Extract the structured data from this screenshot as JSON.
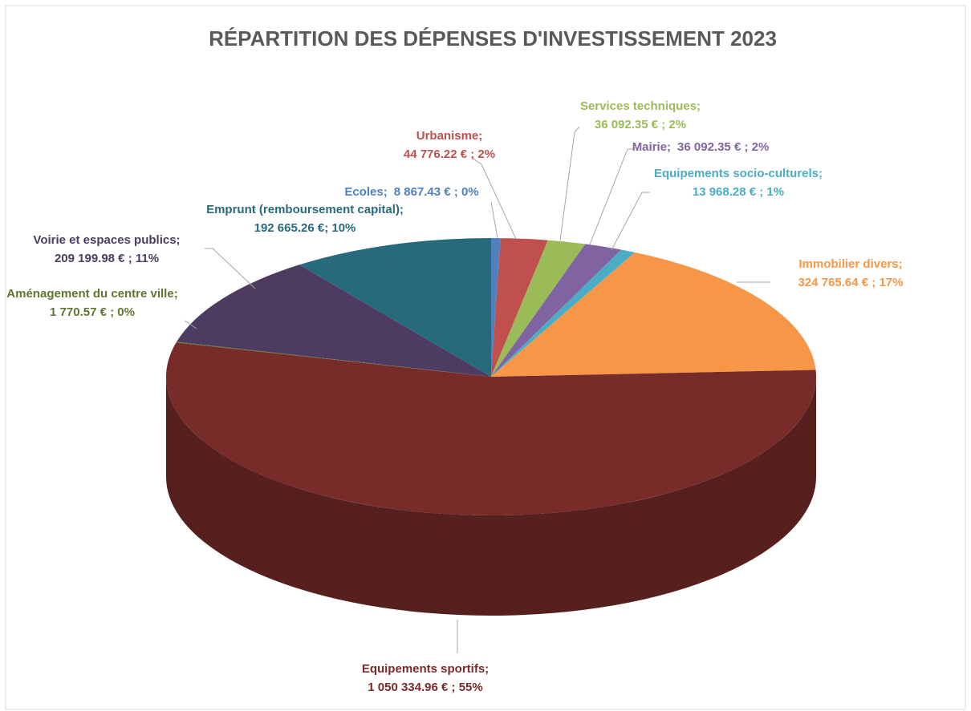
{
  "chart_data": {
    "type": "pie",
    "title": "RÉPARTITION DES DÉPENSES D'INVESTISSEMENT 2023",
    "categories": [
      "Ecoles;",
      "Urbanisme;",
      "Services techniques;",
      "Mairie;",
      "Equipements socio-culturels;",
      "Immobilier divers;",
      "Equipements sportifs;",
      "Aménagement du centre ville;",
      "Voirie et espaces publics;",
      "Emprunt (remboursement capital);"
    ],
    "values": [
      8867.43,
      44776.22,
      36092.35,
      36092.35,
      13968.28,
      324765.64,
      1050334.96,
      1770.57,
      209199.98,
      192665.26
    ],
    "value_labels": [
      "8 867.43 € ; 0%",
      "44 776.22 € ; 2%",
      "36 092.35 € ; 2%",
      "36 092.35 € ; 2%",
      "13 968.28 € ; 1%",
      "324 765.64 € ; 17%",
      "1 050 334.96 € ; 55%",
      "1 770.57 € ; 0%",
      "209 199.98 € ; 11%",
      "192 665.26 €; 10%"
    ],
    "colors": [
      "#4f81bd",
      "#c0504d",
      "#9bbb59",
      "#8064a2",
      "#4bacc6",
      "#f79646",
      "#772c2a",
      "#5f7530",
      "#4d3b62",
      "#276a7c"
    ]
  }
}
